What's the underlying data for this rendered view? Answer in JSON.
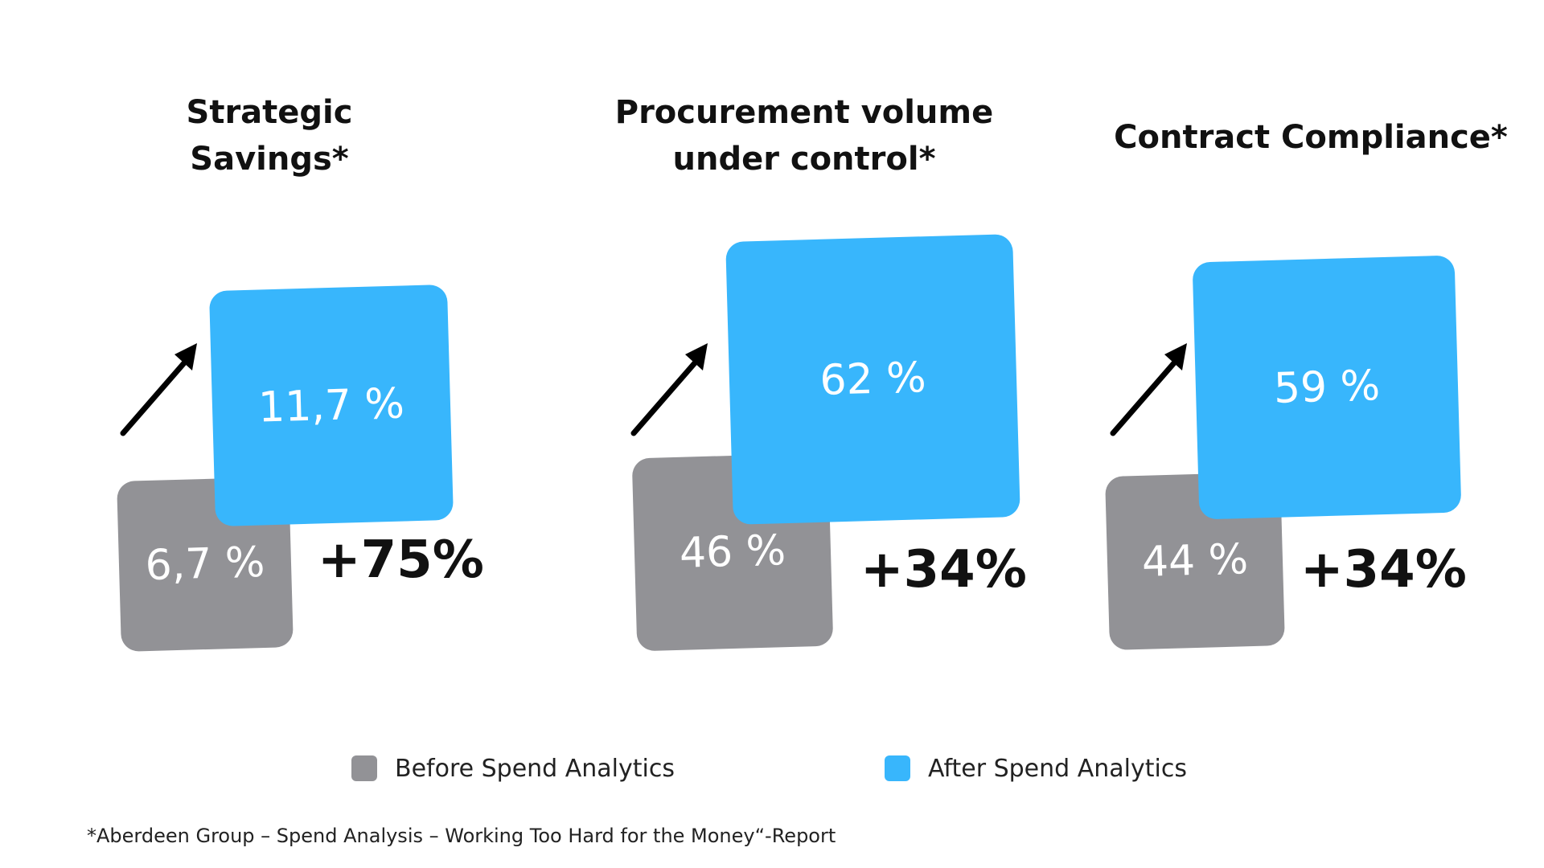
{
  "colors": {
    "before": "#929296",
    "after": "#38b6fc",
    "arrow": "#000000"
  },
  "chart_data": {
    "type": "bar",
    "legend_position": "bottom",
    "grid": false,
    "series": [
      {
        "name": "Before Spend Analytics",
        "color": "#929296"
      },
      {
        "name": "After Spend Analytics",
        "color": "#38b6fc"
      }
    ],
    "panels": [
      {
        "title": "Strategic\nSavings*",
        "before_value": 6.7,
        "after_value": 11.7,
        "before_label": "6,7 %",
        "after_label": "11,7 %",
        "change_label": "+75%"
      },
      {
        "title": "Procurement volume\nunder control*",
        "before_value": 46,
        "after_value": 62,
        "before_label": "46 %",
        "after_label": "62 %",
        "change_label": "+34%"
      },
      {
        "title": "Contract Compliance*",
        "before_value": 44,
        "after_value": 59,
        "before_label": "44 %",
        "after_label": "59 %",
        "change_label": "+34%"
      }
    ],
    "footnote": "*Aberdeen Group – Spend Analysis – Working Too Hard for the Money“-Report"
  },
  "icons": {
    "increase": "arrow-up-right-icon"
  }
}
